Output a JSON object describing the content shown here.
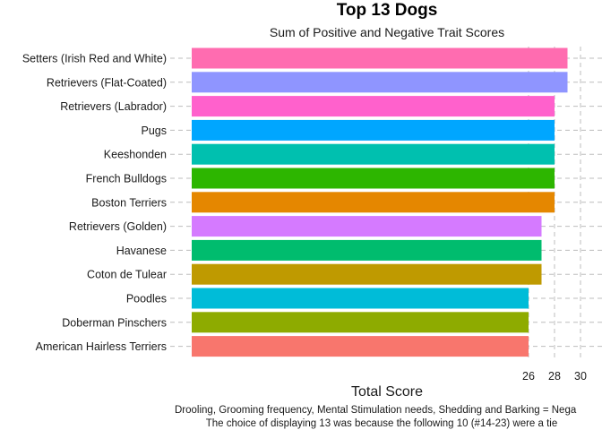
{
  "chart_data": {
    "type": "bar",
    "orientation": "horizontal",
    "title": "Top 13 Dogs",
    "subtitle": "Sum of Positive and Negative Trait Scores",
    "xlabel": "Total Score",
    "ylabel": "",
    "categories": [
      "American Hairless Terriers",
      "Doberman Pinschers",
      "Poodles",
      "Coton de Tulear",
      "Havanese",
      "Retrievers (Golden)",
      "Boston Terriers",
      "French Bulldogs",
      "Keeshonden",
      "Pugs",
      "Retrievers (Labrador)",
      "Retrievers (Flat-Coated)",
      "Setters (Irish Red and White)"
    ],
    "values": [
      26,
      26,
      26,
      27,
      27,
      27,
      28,
      28,
      28,
      28,
      28,
      29,
      29
    ],
    "colors": [
      "#F8766D",
      "#8EAB00",
      "#00BCD8",
      "#BF9A00",
      "#00BC6E",
      "#D57AFF",
      "#E58700",
      "#2DB600",
      "#00C0AF",
      "#00A6FF",
      "#FF61CC",
      "#8F95FF",
      "#FF6CB0"
    ],
    "xticks": [
      26,
      28,
      30
    ],
    "grid": true,
    "legend": "none",
    "caption_lines": [
      "Drooling, Grooming frequency, Mental Stimulation needs, Shedding and Barking = Nega",
      "The choice of displaying 13 was because the following 10 (#14-23) were a tie"
    ]
  }
}
